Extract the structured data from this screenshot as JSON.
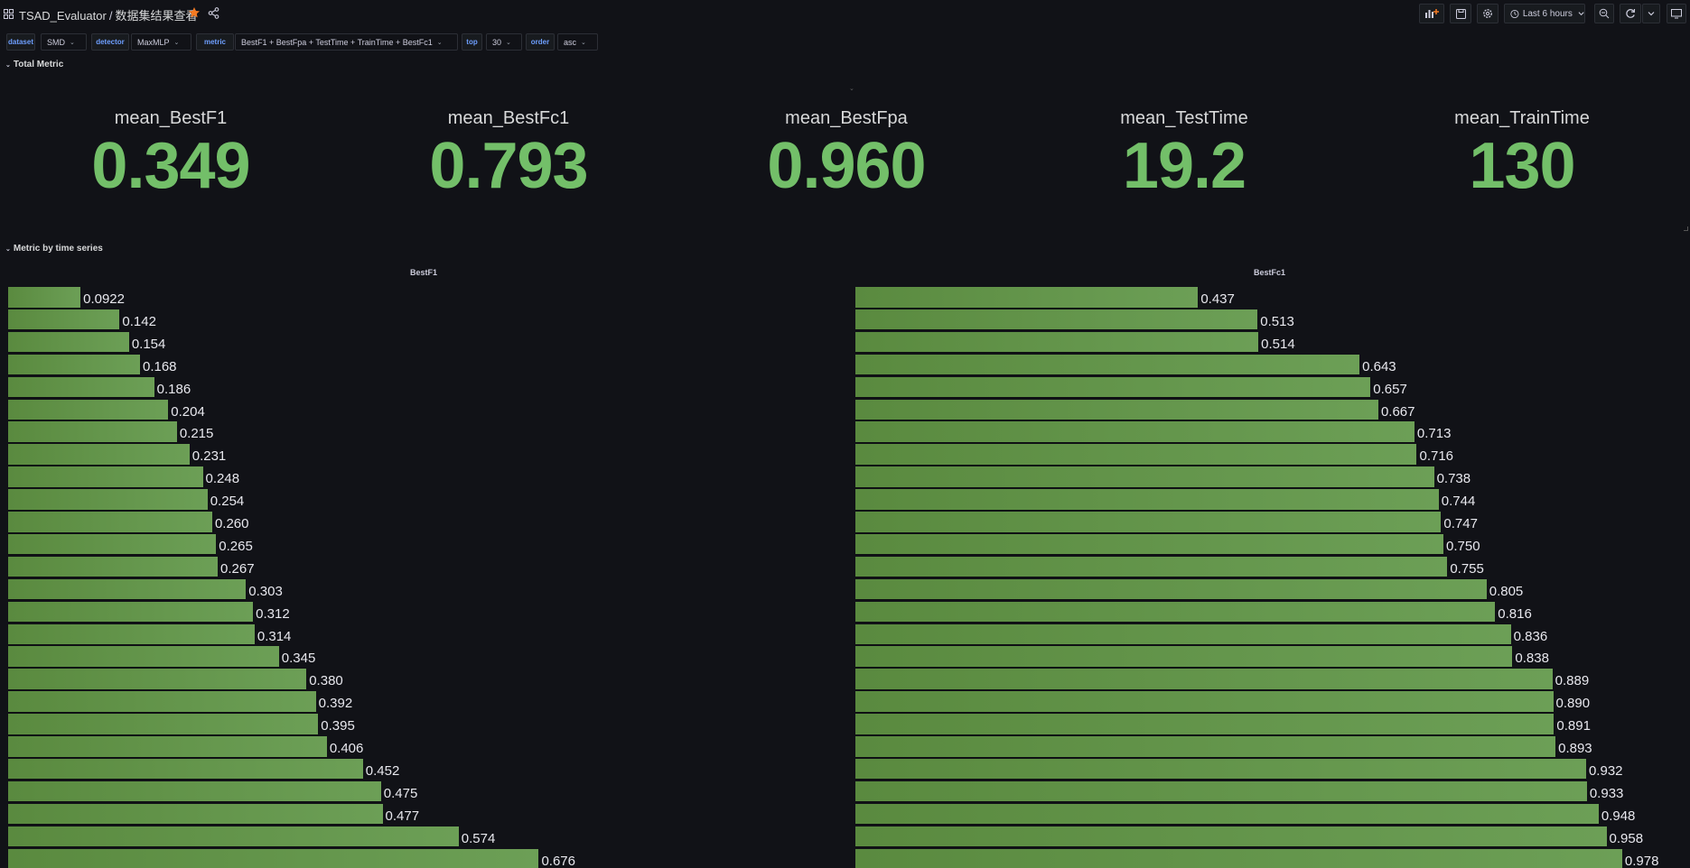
{
  "header": {
    "folder": "TSAD_Evaluator",
    "separator": "/",
    "title": "数据集结果查看",
    "time_range": "Last 6 hours",
    "accent": "#f47a22"
  },
  "variables": [
    {
      "name": "dataset",
      "value": "SMD"
    },
    {
      "name": "detector",
      "value": "MaxMLP"
    },
    {
      "name": "metric",
      "value": "BestF1 + BestFpa + TestTime + TrainTime + BestFc1"
    },
    {
      "name": "top",
      "value": "30"
    },
    {
      "name": "order",
      "value": "asc"
    }
  ],
  "rows": {
    "total": "Total Metric",
    "by_series": "Metric by time series"
  },
  "stats": [
    {
      "title": "mean_BestF1",
      "value": "0.349"
    },
    {
      "title": "mean_BestFc1",
      "value": "0.793"
    },
    {
      "title": "mean_BestFpa",
      "value": "0.960"
    },
    {
      "title": "mean_TestTime",
      "value": "19.2"
    },
    {
      "title": "mean_TrainTime",
      "value": "130"
    }
  ],
  "colors": {
    "value_green": "#73bf69",
    "bar_green": "#629749",
    "background": "#111217"
  },
  "chart_data": [
    {
      "type": "bar",
      "orientation": "horizontal",
      "title": "BestF1",
      "values": [
        0.0922,
        0.142,
        0.154,
        0.168,
        0.186,
        0.204,
        0.215,
        0.231,
        0.248,
        0.254,
        0.26,
        0.265,
        0.267,
        0.303,
        0.312,
        0.314,
        0.345,
        0.38,
        0.392,
        0.395,
        0.406,
        0.452,
        0.475,
        0.477,
        0.574,
        0.676
      ],
      "labels": [
        "0.0922",
        "0.142",
        "0.154",
        "0.168",
        "0.186",
        "0.204",
        "0.215",
        "0.231",
        "0.248",
        "0.254",
        "0.260",
        "0.265",
        "0.267",
        "0.303",
        "0.312",
        "0.314",
        "0.345",
        "0.380",
        "0.392",
        "0.395",
        "0.406",
        "0.452",
        "0.475",
        "0.477",
        "0.574",
        "0.676"
      ],
      "xlim": [
        0,
        1
      ]
    },
    {
      "type": "bar",
      "orientation": "horizontal",
      "title": "BestFc1",
      "values": [
        0.437,
        0.513,
        0.514,
        0.643,
        0.657,
        0.667,
        0.713,
        0.716,
        0.738,
        0.744,
        0.747,
        0.75,
        0.755,
        0.805,
        0.816,
        0.836,
        0.838,
        0.889,
        0.89,
        0.891,
        0.893,
        0.932,
        0.933,
        0.948,
        0.958,
        0.978
      ],
      "labels": [
        "0.437",
        "0.513",
        "0.514",
        "0.643",
        "0.657",
        "0.667",
        "0.713",
        "0.716",
        "0.738",
        "0.744",
        "0.747",
        "0.750",
        "0.755",
        "0.805",
        "0.816",
        "0.836",
        "0.838",
        "0.889",
        "0.890",
        "0.891",
        "0.893",
        "0.932",
        "0.933",
        "0.948",
        "0.958",
        "0.978"
      ],
      "xlim": [
        0,
        1
      ]
    }
  ]
}
